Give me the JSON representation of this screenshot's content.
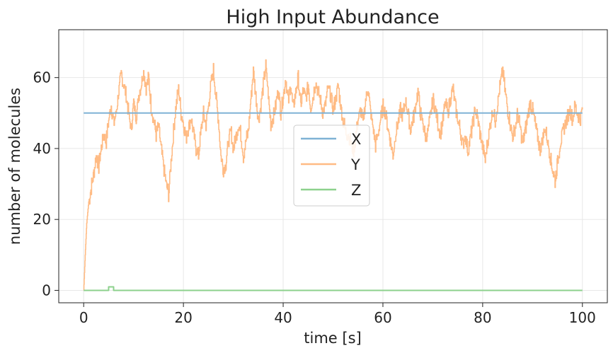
{
  "chart_data": {
    "type": "line",
    "title": "High Input Abundance",
    "xlabel": "time [s]",
    "ylabel": "number of molecules",
    "xlim": [
      -5,
      105
    ],
    "ylim": [
      -3.5,
      73.5
    ],
    "xticks": [
      0,
      20,
      40,
      60,
      80,
      100
    ],
    "yticks": [
      0,
      20,
      40,
      60
    ],
    "grid": true,
    "legend_position": "center",
    "series": [
      {
        "name": "X",
        "color": "#7fb2d5",
        "x": [
          0,
          100
        ],
        "y": [
          50,
          50
        ]
      },
      {
        "name": "Y",
        "color": "#ffbb84",
        "x": [
          0,
          0.3,
          0.6,
          1,
          1.5,
          2,
          2.5,
          3,
          3.5,
          4,
          4.5,
          5,
          5.5,
          6,
          6.5,
          7,
          7.5,
          8,
          8.5,
          9,
          9.5,
          10,
          10.5,
          11,
          11.5,
          12,
          12.5,
          13,
          13.5,
          14,
          14.5,
          15,
          15.5,
          16,
          16.5,
          17,
          17.5,
          18,
          18.5,
          19,
          19.5,
          20,
          20.5,
          21,
          21.5,
          22,
          22.5,
          23,
          23.5,
          24,
          24.5,
          25,
          25.5,
          26,
          26.5,
          27,
          27.5,
          28,
          28.5,
          29,
          29.5,
          30,
          30.5,
          31,
          31.5,
          32,
          32.5,
          33,
          33.5,
          34,
          34.5,
          35,
          35.5,
          36,
          36.5,
          37,
          37.5,
          38,
          38.5,
          39,
          39.5,
          40,
          40.5,
          41,
          41.5,
          42,
          42.5,
          43,
          43.5,
          44,
          44.5,
          45,
          45.5,
          46,
          46.5,
          47,
          47.5,
          48,
          48.5,
          49,
          49.5,
          50,
          50.5,
          51,
          51.5,
          52,
          52.5,
          53,
          53.5,
          54,
          54.5,
          55,
          55.5,
          56,
          56.5,
          57,
          57.5,
          58,
          58.5,
          59,
          59.5,
          60,
          60.5,
          61,
          61.5,
          62,
          62.5,
          63,
          63.5,
          64,
          64.5,
          65,
          65.5,
          66,
          66.5,
          67,
          67.5,
          68,
          68.5,
          69,
          69.5,
          70,
          70.5,
          71,
          71.5,
          72,
          72.5,
          73,
          73.5,
          74,
          74.5,
          75,
          75.5,
          76,
          76.5,
          77,
          77.5,
          78,
          78.5,
          79,
          79.5,
          80,
          80.5,
          81,
          81.5,
          82,
          82.5,
          83,
          83.5,
          84,
          84.5,
          85,
          85.5,
          86,
          86.5,
          87,
          87.5,
          88,
          88.5,
          89,
          89.5,
          90,
          90.5,
          91,
          91.5,
          92,
          92.5,
          93,
          93.5,
          94,
          94.5,
          95,
          95.5,
          96,
          96.5,
          97,
          97.5,
          98,
          98.5,
          99,
          99.5,
          100
        ],
        "y": [
          0,
          10,
          19,
          25,
          29,
          33,
          38,
          35,
          40,
          44,
          42,
          48,
          52,
          47,
          50,
          56,
          61,
          58,
          55,
          50,
          45,
          53,
          49,
          55,
          58,
          62,
          57,
          60,
          52,
          48,
          44,
          46,
          40,
          35,
          30,
          27,
          36,
          45,
          52,
          57,
          50,
          47,
          43,
          46,
          49,
          44,
          40,
          38,
          45,
          50,
          47,
          52,
          58,
          62,
          55,
          48,
          38,
          34,
          36,
          42,
          45,
          40,
          43,
          47,
          44,
          38,
          42,
          45,
          54,
          62,
          55,
          48,
          52,
          58,
          63,
          55,
          47,
          49,
          52,
          57,
          50,
          55,
          60,
          53,
          58,
          51,
          56,
          60,
          52,
          57,
          54,
          58,
          51,
          55,
          59,
          56,
          53,
          50,
          53,
          57,
          55,
          51,
          54,
          58,
          52,
          48,
          45,
          44,
          42,
          39,
          43,
          48,
          51,
          47,
          54,
          57,
          50,
          46,
          41,
          44,
          48,
          52,
          50,
          46,
          42,
          38,
          44,
          47,
          51,
          49,
          54,
          50,
          45,
          48,
          52,
          56,
          50,
          47,
          43,
          45,
          49,
          54,
          51,
          47,
          44,
          48,
          53,
          50,
          54,
          57,
          52,
          48,
          45,
          41,
          44,
          39,
          43,
          47,
          51,
          48,
          44,
          40,
          37,
          42,
          47,
          51,
          48,
          53,
          58,
          62,
          56,
          51,
          47,
          43,
          46,
          50,
          46,
          41,
          45,
          49,
          53,
          51,
          47,
          43,
          40,
          43,
          46,
          42,
          38,
          34,
          31,
          36,
          41,
          44,
          47,
          49,
          51,
          48,
          52,
          50,
          48,
          51
        ]
      },
      {
        "name": "Z",
        "color": "#8dd18d",
        "x": [
          0,
          5,
          5,
          6,
          6,
          100
        ],
        "y": [
          0,
          0,
          1,
          1,
          0,
          0
        ]
      }
    ]
  }
}
